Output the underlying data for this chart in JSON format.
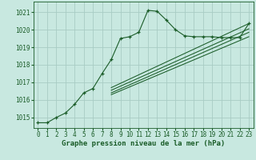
{
  "bg_color": "#c8e8e0",
  "grid_color": "#a8ccc4",
  "line_color": "#1a5c28",
  "ylim": [
    1014.4,
    1021.6
  ],
  "xlim": [
    -0.5,
    23.5
  ],
  "yticks": [
    1015,
    1016,
    1017,
    1018,
    1019,
    1020,
    1021
  ],
  "xticks": [
    0,
    1,
    2,
    3,
    4,
    5,
    6,
    7,
    8,
    9,
    10,
    11,
    12,
    13,
    14,
    15,
    16,
    17,
    18,
    19,
    20,
    21,
    22,
    23
  ],
  "main_data_x": [
    0,
    1,
    2,
    3,
    4,
    5,
    6,
    7,
    8,
    9,
    10,
    11,
    12,
    13,
    14,
    15,
    16,
    17,
    18,
    19,
    20,
    21,
    22,
    23
  ],
  "main_data_y": [
    1014.7,
    1014.7,
    1015.0,
    1015.25,
    1015.75,
    1016.4,
    1016.65,
    1017.5,
    1018.3,
    1019.5,
    1019.6,
    1019.85,
    1021.1,
    1021.05,
    1020.55,
    1020.0,
    1019.65,
    1019.6,
    1019.6,
    1019.6,
    1019.55,
    1019.55,
    1019.55,
    1020.35
  ],
  "smooth_lines": [
    {
      "x": [
        8,
        23
      ],
      "y": [
        1016.3,
        1019.6
      ]
    },
    {
      "x": [
        8,
        23
      ],
      "y": [
        1016.4,
        1019.85
      ]
    },
    {
      "x": [
        8,
        23
      ],
      "y": [
        1016.55,
        1020.05
      ]
    },
    {
      "x": [
        8,
        23
      ],
      "y": [
        1016.7,
        1020.35
      ]
    }
  ],
  "xlabel": "Graphe pression niveau de la mer (hPa)",
  "font_size_ticks": 5.5,
  "font_size_label": 6.5
}
